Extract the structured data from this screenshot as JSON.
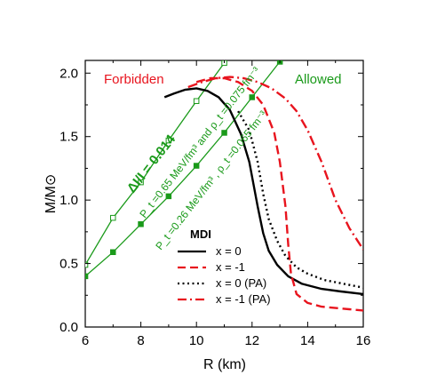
{
  "chart_data": {
    "type": "line",
    "xlabel": "R (km)",
    "ylabel": "M/M⊙",
    "xlim": [
      6,
      16
    ],
    "ylim": [
      0.0,
      2.1
    ],
    "xticks": [
      "6",
      "8",
      "10",
      "12",
      "14",
      "16"
    ],
    "yticks": [
      "0.0",
      "0.5",
      "1.0",
      "1.5",
      "2.0"
    ],
    "region_labels": {
      "left": "Forbidden",
      "right": "Allowed"
    },
    "colors": {
      "red": "#e8141e",
      "green": "#1a9a1a",
      "black": "#000000"
    },
    "legend": {
      "title": "MDI",
      "placement": "lower-right",
      "entries": [
        "x = 0",
        "x = -1",
        "x = 0  (PA)",
        "x = -1 (PA)"
      ]
    },
    "series": [
      {
        "name": "x = 0",
        "style": "solid",
        "color": "#000000",
        "x": [
          8.85,
          9.2,
          9.6,
          10.0,
          10.4,
          10.8,
          11.2,
          11.6,
          11.9,
          12.2,
          12.4,
          12.6,
          12.9,
          13.3,
          13.8,
          14.5,
          15.2,
          16.0
        ],
        "y": [
          1.81,
          1.84,
          1.87,
          1.88,
          1.86,
          1.81,
          1.71,
          1.52,
          1.3,
          0.95,
          0.74,
          0.6,
          0.49,
          0.4,
          0.34,
          0.3,
          0.28,
          0.26
        ]
      },
      {
        "name": "x = -1",
        "style": "dashed",
        "color": "#e8141e",
        "x": [
          10.0,
          10.5,
          11.0,
          11.5,
          12.0,
          12.4,
          12.8,
          13.0,
          13.2,
          13.3,
          13.4,
          13.6,
          14.0,
          14.5,
          15.0,
          15.5,
          16.0
        ],
        "y": [
          1.93,
          1.96,
          1.96,
          1.93,
          1.86,
          1.75,
          1.53,
          1.3,
          0.95,
          0.65,
          0.42,
          0.26,
          0.19,
          0.16,
          0.15,
          0.14,
          0.13
        ]
      },
      {
        "name": "x = 0  (PA)",
        "style": "dotted",
        "color": "#000000",
        "x": [
          11.5,
          11.9,
          12.2,
          12.4,
          12.6,
          12.9,
          13.2,
          13.6,
          14.0,
          14.6,
          15.3,
          16.0
        ],
        "y": [
          1.7,
          1.55,
          1.3,
          1.05,
          0.85,
          0.68,
          0.56,
          0.47,
          0.42,
          0.37,
          0.34,
          0.31
        ]
      },
      {
        "name": "x = -1 (PA)",
        "style": "dashdot",
        "color": "#e8141e",
        "x": [
          9.7,
          10.2,
          10.7,
          11.2,
          11.7,
          12.2,
          12.7,
          13.2,
          13.6,
          14.0,
          14.5,
          15.0,
          15.5,
          16.0
        ],
        "y": [
          1.89,
          1.93,
          1.96,
          1.97,
          1.96,
          1.93,
          1.88,
          1.8,
          1.7,
          1.55,
          1.3,
          1.0,
          0.78,
          0.61
        ]
      }
    ],
    "constraints": {
      "label_ratio": "ΔI/I = 0.014",
      "line_open_label": "P_t =0.65 MeV/fm³ and ρ_t =0.075 fm⁻³",
      "line_filled_label": "P_t =0.26 MeV/fm³ , ρ_t =0.065 fm⁻³",
      "line_open": {
        "color": "#1a9a1a",
        "marker": "open-square",
        "x": [
          6.0,
          7.0,
          8.0,
          9.0,
          10.0,
          11.0
        ],
        "y": [
          0.49,
          0.86,
          1.14,
          1.47,
          1.78,
          2.08
        ]
      },
      "line_filled": {
        "color": "#1a9a1a",
        "marker": "filled-square",
        "x": [
          6.0,
          7.0,
          8.0,
          9.0,
          10.0,
          11.0,
          12.0,
          13.0
        ],
        "y": [
          0.4,
          0.59,
          0.81,
          1.03,
          1.27,
          1.53,
          1.81,
          2.09
        ]
      }
    }
  }
}
